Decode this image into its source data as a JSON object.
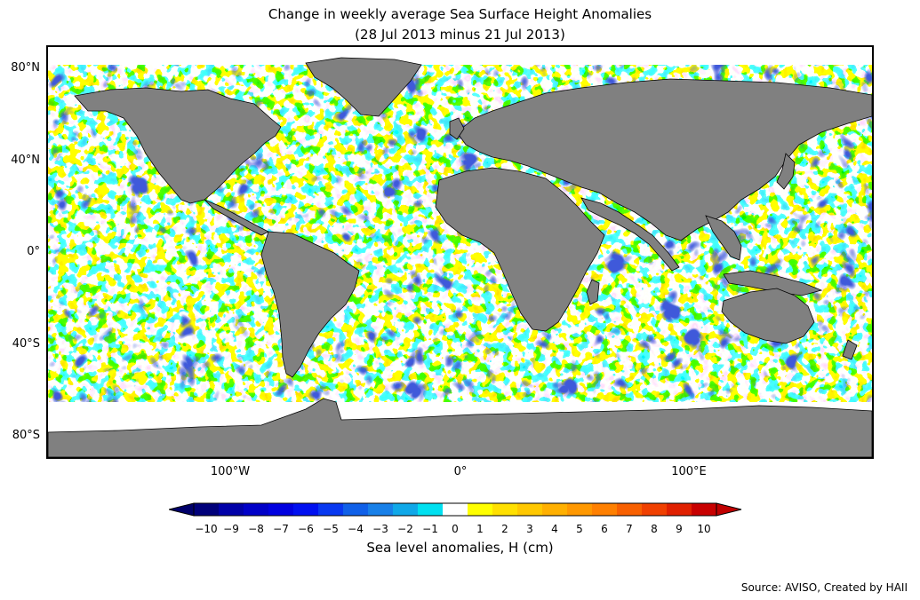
{
  "title": {
    "line1": "Change in weekly average Sea Surface Height Anomalies",
    "line2": "(28 Jul 2013 minus 21 Jul 2013)"
  },
  "map": {
    "land_color": "#808080",
    "no_data_color": "#ffffff",
    "lat_labels": [
      "80°N",
      "40°N",
      "0°",
      "40°S",
      "80°S"
    ],
    "lon_labels": [
      "100°W",
      "0°",
      "100°E"
    ],
    "latitudes": [
      80,
      40,
      0,
      -40,
      -80
    ],
    "longitudes": [
      -100,
      0,
      100
    ]
  },
  "colorbar": {
    "label": "Sea level anomalies, H (cm)",
    "tick_labels": [
      "−10",
      "−9",
      "−8",
      "−7",
      "−6",
      "−5",
      "−4",
      "−3",
      "−2",
      "−1",
      "0",
      "1",
      "2",
      "3",
      "4",
      "5",
      "6",
      "7",
      "8",
      "9",
      "10"
    ],
    "colors": [
      "#00007a",
      "#0000a8",
      "#0000c8",
      "#0000e0",
      "#0010f0",
      "#0838f0",
      "#1060e8",
      "#1880e8",
      "#10a8e8",
      "#00e0f0",
      "#ffffff",
      "#ffff00",
      "#ffe000",
      "#ffc800",
      "#ffb000",
      "#ff9800",
      "#ff8000",
      "#f86000",
      "#f04000",
      "#e02000",
      "#c80000"
    ],
    "under_color": "#00006a",
    "over_color": "#c00000"
  },
  "source": "Source: AVISO, Created by HAII"
}
